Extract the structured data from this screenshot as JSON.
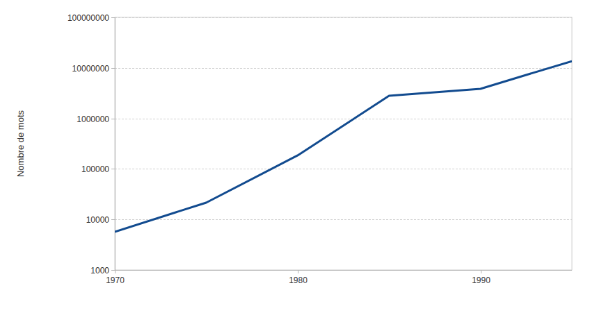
{
  "chart_data": {
    "type": "line",
    "y_label": "Nombre de mots",
    "x": [
      1970,
      1975,
      1980,
      1985,
      1990,
      1995
    ],
    "values": [
      5700,
      21500,
      185000,
      2800000,
      3850000,
      13600000
    ],
    "color": "#124b8f",
    "xlim": [
      1970,
      1995
    ],
    "xticks": [
      1970,
      1980,
      1990
    ],
    "ylim": [
      1000,
      100000000
    ],
    "yticks": [
      1000,
      10000,
      100000,
      1000000,
      10000000,
      100000000
    ],
    "log": "y",
    "grid": true
  }
}
